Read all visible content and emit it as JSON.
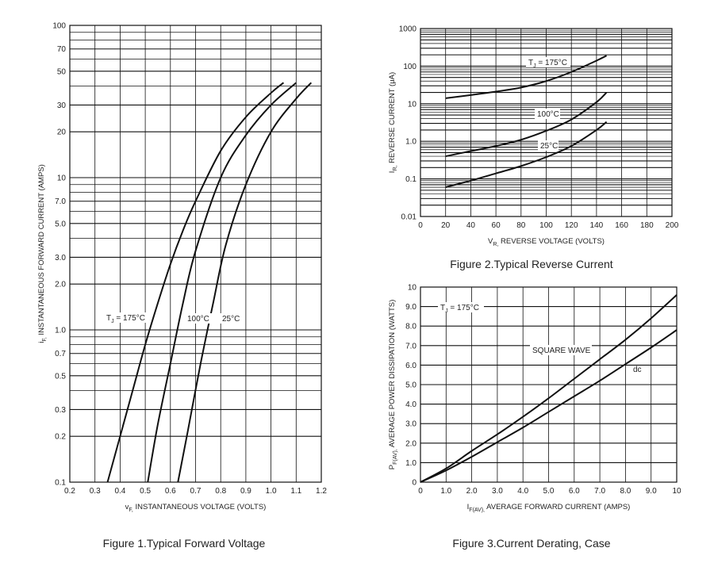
{
  "chart_data": [
    {
      "type": "line",
      "caption": "Figure 1.Typical  Forward  Voltage",
      "xlabel": "v",
      "xlabel_sub": "F,",
      "xlabel_rest": " INSTANTANEOUS VOLTAGE (VOLTS)",
      "ylabel": "i",
      "ylabel_sub": "F,",
      "ylabel_rest": " INSTANTANEOUS FORWARD CURRENT (AMPS)",
      "xlim": [
        0.2,
        1.2
      ],
      "ylim": [
        0.1,
        100
      ],
      "y_scale": "log",
      "x_ticks": [
        "0.2",
        "0.3",
        "0.4",
        "0.5",
        "0.6",
        "0.7",
        "0.8",
        "0.9",
        "1.0",
        "1.1",
        "1.2"
      ],
      "y_ticks": [
        {
          "v": 100,
          "t": "100"
        },
        {
          "v": 70,
          "t": "70"
        },
        {
          "v": 50,
          "t": "50"
        },
        {
          "v": 30,
          "t": "30"
        },
        {
          "v": 20,
          "t": "20"
        },
        {
          "v": 10,
          "t": "10"
        },
        {
          "v": 7,
          "t": "7.0"
        },
        {
          "v": 5,
          "t": "5.0"
        },
        {
          "v": 3,
          "t": "3.0"
        },
        {
          "v": 2,
          "t": "2.0"
        },
        {
          "v": 1,
          "t": "1.0"
        },
        {
          "v": 0.7,
          "t": "0.7"
        },
        {
          "v": 0.5,
          "t": "0.5"
        },
        {
          "v": 0.3,
          "t": "0.3"
        },
        {
          "v": 0.2,
          "t": "0.2"
        },
        {
          "v": 0.1,
          "t": "0.1"
        }
      ],
      "series": [
        {
          "name": "T_J = 175°C",
          "x": [
            0.35,
            0.4,
            0.45,
            0.5,
            0.55,
            0.6,
            0.65,
            0.7,
            0.8,
            0.9,
            1.0,
            1.05
          ],
          "y": [
            0.1,
            0.2,
            0.4,
            0.8,
            1.5,
            2.7,
            4.5,
            7,
            15,
            25,
            36,
            42
          ]
        },
        {
          "name": "100°C",
          "x": [
            0.51,
            0.55,
            0.6,
            0.65,
            0.7,
            0.8,
            0.9,
            1.0,
            1.1
          ],
          "y": [
            0.1,
            0.24,
            0.6,
            1.5,
            3.3,
            10,
            19,
            30,
            42
          ]
        },
        {
          "name": "25°C",
          "x": [
            0.63,
            0.67,
            0.72,
            0.77,
            0.82,
            0.9,
            1.0,
            1.1,
            1.16
          ],
          "y": [
            0.1,
            0.22,
            0.6,
            1.5,
            3.6,
            9,
            20,
            33,
            42
          ]
        }
      ],
      "labels": {
        "tj": "T",
        "tj_sub": "J",
        "tj_rest": " = 175°C",
        "l100": "100°C",
        "l25": "25°C"
      }
    },
    {
      "type": "line",
      "caption": "Figure 2.Typical  Reverse  Current",
      "xlabel": "V",
      "xlabel_sub": "R,",
      "xlabel_rest": " REVERSE VOLTAGE (VOLTS)",
      "ylabel": "I",
      "ylabel_sub": "R,",
      "ylabel_rest": " REVERSE CURRENT (μA)",
      "xlim": [
        0,
        200
      ],
      "ylim": [
        0.01,
        1000
      ],
      "y_scale": "log",
      "x_ticks": [
        "0",
        "20",
        "40",
        "60",
        "80",
        "100",
        "120",
        "140",
        "160",
        "180",
        "200"
      ],
      "y_ticks": [
        {
          "v": 1000,
          "t": "1000"
        },
        {
          "v": 100,
          "t": "100"
        },
        {
          "v": 10,
          "t": "10"
        },
        {
          "v": 1,
          "t": "1.0"
        },
        {
          "v": 0.1,
          "t": "0.1"
        },
        {
          "v": 0.01,
          "t": "0.01"
        }
      ],
      "series": [
        {
          "name": "T_J = 175°C",
          "x": [
            20,
            40,
            60,
            80,
            100,
            120,
            140,
            148
          ],
          "y": [
            14,
            17,
            21,
            27,
            40,
            70,
            140,
            190
          ]
        },
        {
          "name": "100°C",
          "x": [
            20,
            40,
            60,
            80,
            100,
            120,
            140,
            148
          ],
          "y": [
            0.4,
            0.55,
            0.75,
            1.1,
            1.9,
            3.8,
            11,
            20
          ]
        },
        {
          "name": "25°C",
          "x": [
            20,
            40,
            60,
            80,
            100,
            120,
            140,
            148
          ],
          "y": [
            0.06,
            0.09,
            0.14,
            0.22,
            0.38,
            0.75,
            2.0,
            3.3
          ]
        }
      ],
      "labels": {
        "tj": "T",
        "tj_sub": "J",
        "tj_rest": " = 175°C",
        "l100": "100°C",
        "l25": "25°C"
      }
    },
    {
      "type": "line",
      "caption": "Figure 3.Current  Derating,  Case",
      "xlabel": "I",
      "xlabel_sub": "F(AV),",
      "xlabel_rest": " AVERAGE FORWARD CURRENT (AMPS)",
      "ylabel": "P",
      "ylabel_sub": "F(AV),",
      "ylabel_rest": " AVERAGE POWER DISSIPATION (WATTS)",
      "xlim": [
        0,
        10
      ],
      "ylim": [
        0,
        10
      ],
      "y_scale": "linear",
      "x_ticks": [
        "0",
        "1.0",
        "2.0",
        "3.0",
        "4.0",
        "5.0",
        "6.0",
        "7.0",
        "8.0",
        "9.0",
        "10"
      ],
      "y_ticks": [
        {
          "v": 10,
          "t": "10"
        },
        {
          "v": 9,
          "t": "9.0"
        },
        {
          "v": 8,
          "t": "8.0"
        },
        {
          "v": 7,
          "t": "7.0"
        },
        {
          "v": 6,
          "t": "6.0"
        },
        {
          "v": 5,
          "t": "5.0"
        },
        {
          "v": 4,
          "t": "4.0"
        },
        {
          "v": 3,
          "t": "3.0"
        },
        {
          "v": 2,
          "t": "2.0"
        },
        {
          "v": 1,
          "t": "1.0"
        },
        {
          "v": 0,
          "t": "0"
        }
      ],
      "series": [
        {
          "name": "SQUARE WAVE",
          "x": [
            0,
            1,
            2,
            3,
            4,
            5,
            6,
            7,
            8,
            9,
            10
          ],
          "y": [
            0,
            0.7,
            1.6,
            2.45,
            3.35,
            4.3,
            5.3,
            6.3,
            7.3,
            8.4,
            9.6
          ]
        },
        {
          "name": "dc",
          "x": [
            0,
            1,
            2,
            3,
            4,
            5,
            6,
            7,
            8,
            9,
            10
          ],
          "y": [
            0,
            0.6,
            1.3,
            2.05,
            2.8,
            3.6,
            4.4,
            5.2,
            6.05,
            6.9,
            7.8
          ]
        }
      ],
      "labels": {
        "tj": "T",
        "tj_sub": "J",
        "tj_rest": " = 175°C",
        "sq": "SQUARE WAVE",
        "dc": "dc"
      }
    }
  ]
}
